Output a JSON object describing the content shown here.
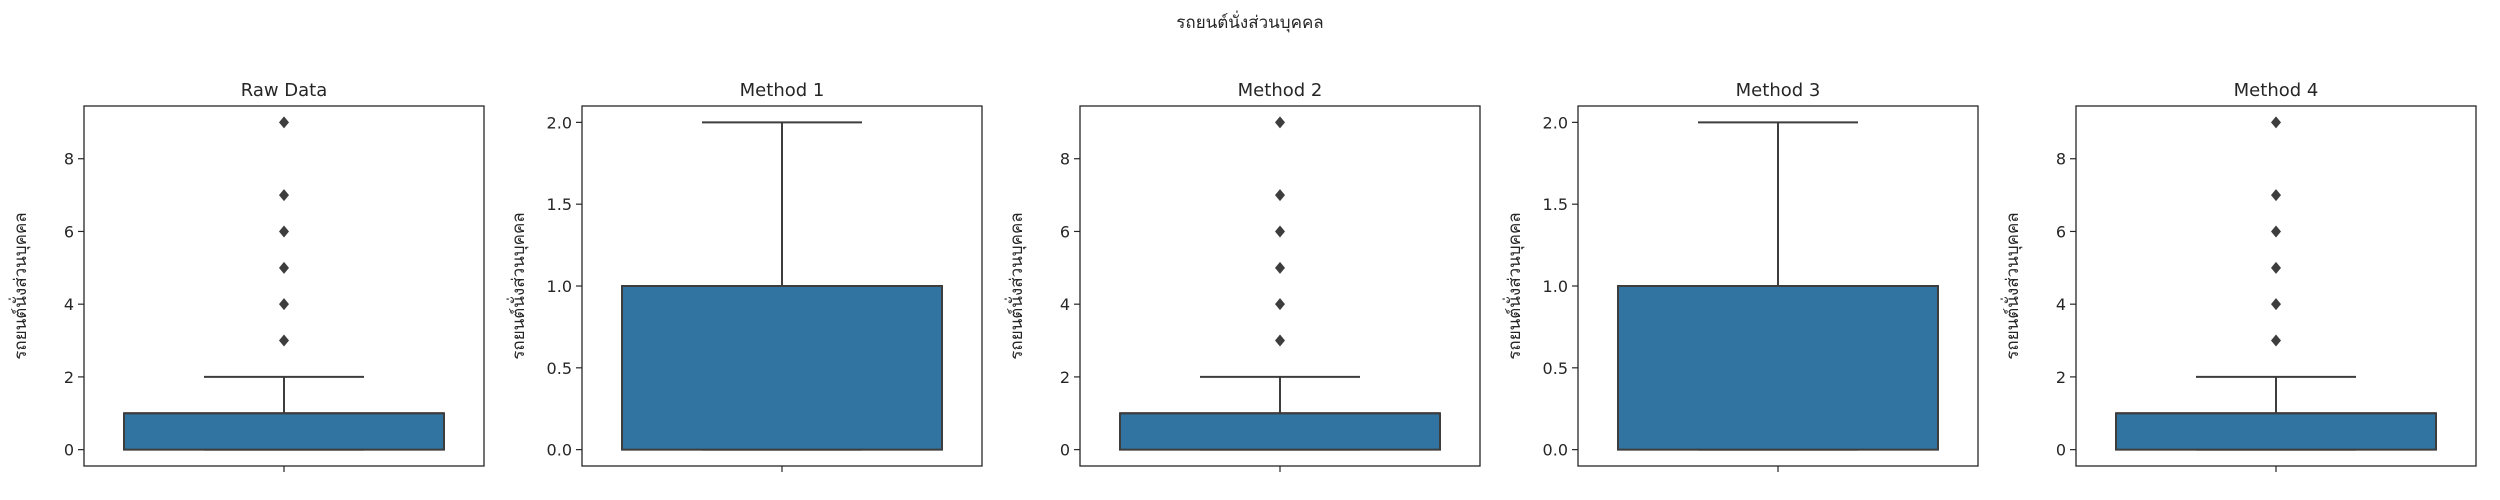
{
  "figure": {
    "suptitle": "รถยนต์นั่งส่วนบุคคล"
  },
  "colors": {
    "box_fill": "#3274a1",
    "line": "#3d3d3d",
    "frame": "#262626",
    "background": "#ffffff"
  },
  "chart_data": [
    {
      "type": "box",
      "title": "Raw Data",
      "ylabel": "รถยนต์นั่งส่วนบุคคล",
      "ylim": [
        -0.45,
        9.45
      ],
      "yticks": [
        0,
        2,
        4,
        6,
        8
      ],
      "tick_labels": [
        "0",
        "2",
        "4",
        "6",
        "8"
      ],
      "q1": 0,
      "median": 1,
      "q3": 1,
      "whisker_low": 0,
      "whisker_high": 2,
      "outliers": [
        3,
        4,
        5,
        6,
        7,
        9
      ]
    },
    {
      "type": "box",
      "title": "Method 1",
      "ylabel": "รถยนต์นั่งส่วนบุคคล",
      "ylim": [
        -0.1,
        2.1
      ],
      "yticks": [
        0,
        0.5,
        1,
        1.5,
        2
      ],
      "tick_labels": [
        "0.0",
        "0.5",
        "1.0",
        "1.5",
        "2.0"
      ],
      "q1": 0,
      "median": 1,
      "q3": 1,
      "whisker_low": 0,
      "whisker_high": 2,
      "outliers": []
    },
    {
      "type": "box",
      "title": "Method 2",
      "ylabel": "รถยนต์นั่งส่วนบุคคล",
      "ylim": [
        -0.45,
        9.45
      ],
      "yticks": [
        0,
        2,
        4,
        6,
        8
      ],
      "tick_labels": [
        "0",
        "2",
        "4",
        "6",
        "8"
      ],
      "q1": 0,
      "median": 1,
      "q3": 1,
      "whisker_low": 0,
      "whisker_high": 2,
      "outliers": [
        3,
        4,
        5,
        6,
        7,
        9
      ]
    },
    {
      "type": "box",
      "title": "Method 3",
      "ylabel": "รถยนต์นั่งส่วนบุคคล",
      "ylim": [
        -0.1,
        2.1
      ],
      "yticks": [
        0,
        0.5,
        1,
        1.5,
        2
      ],
      "tick_labels": [
        "0.0",
        "0.5",
        "1.0",
        "1.5",
        "2.0"
      ],
      "q1": 0,
      "median": 1,
      "q3": 1,
      "whisker_low": 0,
      "whisker_high": 2,
      "outliers": []
    },
    {
      "type": "box",
      "title": "Method 4",
      "ylabel": "รถยนต์นั่งส่วนบุคคล",
      "ylim": [
        -0.45,
        9.45
      ],
      "yticks": [
        0,
        2,
        4,
        6,
        8
      ],
      "tick_labels": [
        "0",
        "2",
        "4",
        "6",
        "8"
      ],
      "q1": 0,
      "median": 1,
      "q3": 1,
      "whisker_low": 0,
      "whisker_high": 2,
      "outliers": [
        3,
        4,
        5,
        6,
        7,
        9
      ]
    }
  ]
}
